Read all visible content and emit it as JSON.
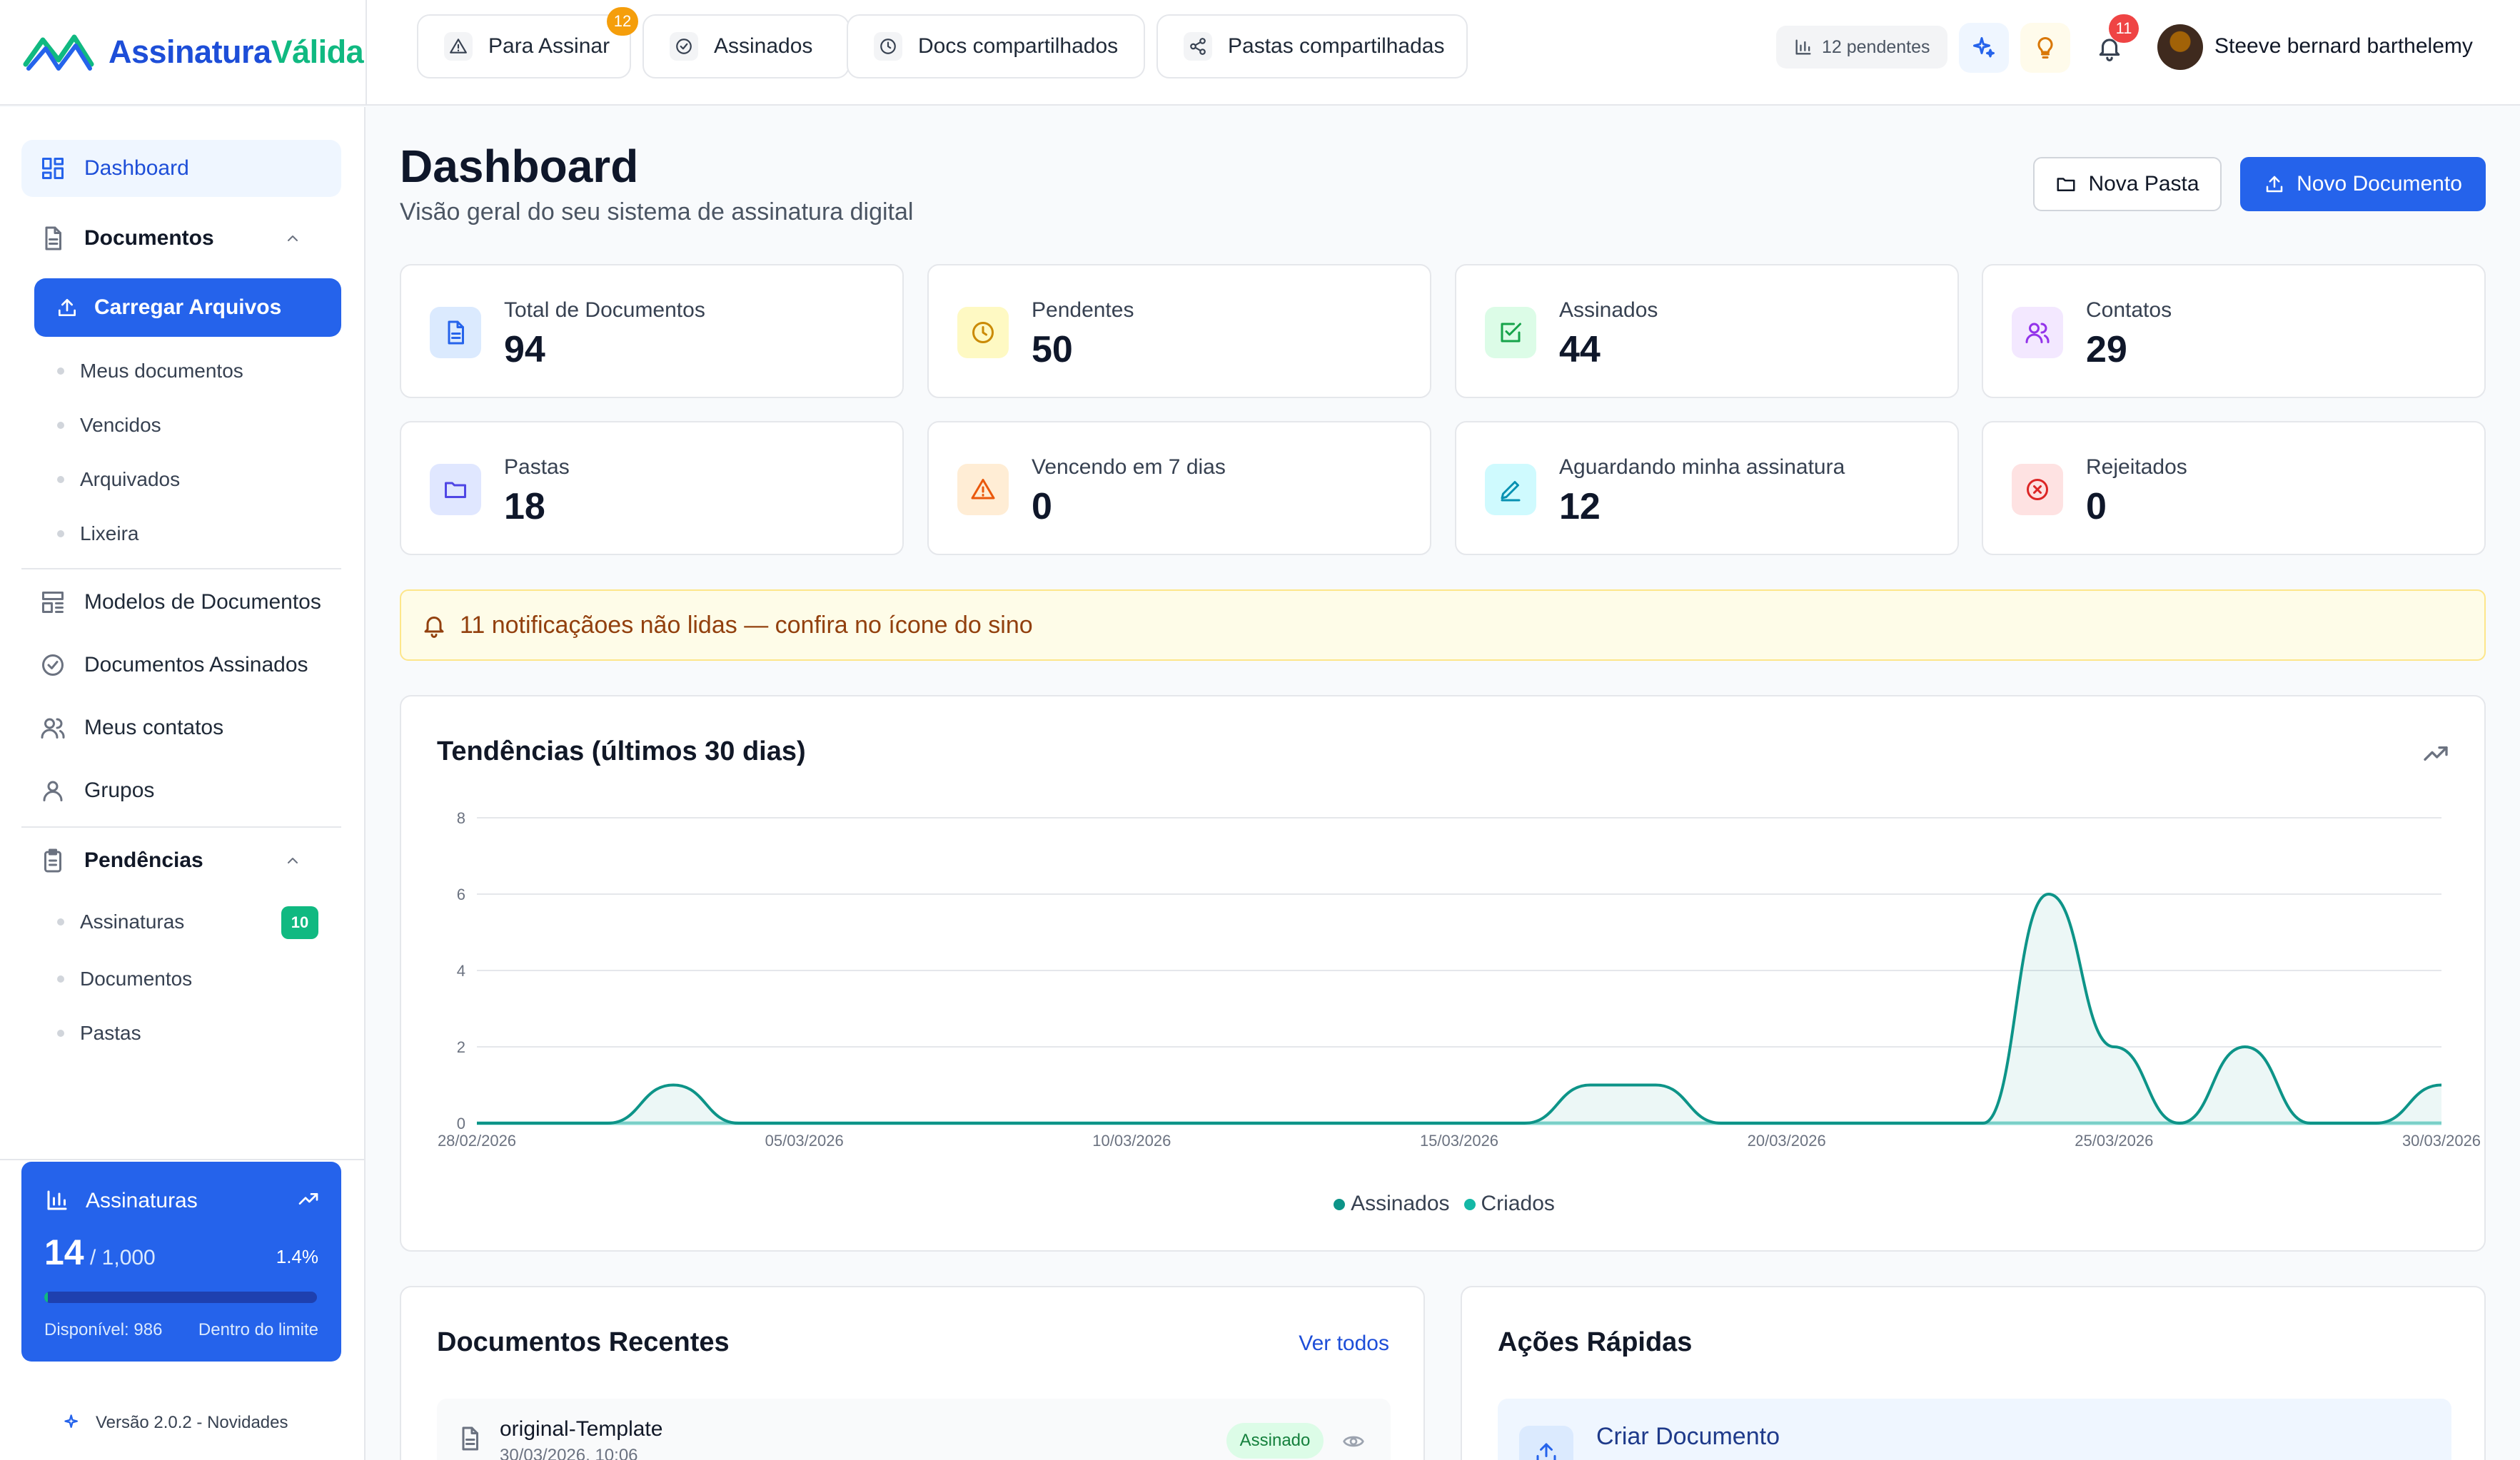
{
  "app": {
    "logo_main": "Assinatura",
    "logo_accent": "Válida"
  },
  "header": {
    "tabs": [
      {
        "label": "Para Assinar",
        "badge": "12",
        "icon": "alert-triangle-icon"
      },
      {
        "label": "Assinados",
        "icon": "check-circle-icon"
      },
      {
        "label": "Docs compartilhados",
        "icon": "clock-icon"
      },
      {
        "label": "Pastas compartilhadas",
        "icon": "share-icon"
      }
    ],
    "pending_label": "12 pendentes",
    "bell_badge": "11",
    "user_name": "Steeve bernard barthelemy"
  },
  "sidebar": {
    "dashboard": "Dashboard",
    "documentos": "Documentos",
    "upload": "Carregar Arquivos",
    "doc_sub": [
      "Meus documentos",
      "Vencidos",
      "Arquivados",
      "Lixeira"
    ],
    "modelos": "Modelos de Documentos",
    "assinados": "Documentos Assinados",
    "contatos": "Meus contatos",
    "grupos": "Grupos",
    "pendencias": "Pendências",
    "pend_sub": [
      "Assinaturas",
      "Documentos",
      "Pastas"
    ],
    "pend_badge": "10",
    "quota": {
      "title": "Assinaturas",
      "used": "14",
      "total": "/ 1,000",
      "percent": "1.4%",
      "fill_fraction": 0.014,
      "available": "Disponível: 986",
      "status": "Dentro do limite"
    },
    "version": "Versão 2.0.2 - Novidades"
  },
  "main": {
    "title": "Dashboard",
    "subtitle": "Visão geral do seu sistema de assinatura digital",
    "btn_nova_pasta": "Nova Pasta",
    "btn_novo_documento": "Novo Documento",
    "stats": [
      {
        "label": "Total de Documentos",
        "value": "94",
        "icon": "document-icon",
        "color": "#2563eb",
        "bg": "#dbeafe"
      },
      {
        "label": "Pendentes",
        "value": "50",
        "icon": "clock-icon",
        "color": "#ca8a04",
        "bg": "#fef9c3"
      },
      {
        "label": "Assinados",
        "value": "44",
        "icon": "check-square-icon",
        "color": "#16a34a",
        "bg": "#dcfce7"
      },
      {
        "label": "Contatos",
        "value": "29",
        "icon": "users-icon",
        "color": "#9333ea",
        "bg": "#f3e8ff"
      },
      {
        "label": "Pastas",
        "value": "18",
        "icon": "folder-icon",
        "color": "#4f46e5",
        "bg": "#e0e7ff"
      },
      {
        "label": "Vencendo em 7 dias",
        "value": "0",
        "icon": "warning-icon",
        "color": "#ea580c",
        "bg": "#ffedd5"
      },
      {
        "label": "Aguardando minha assinatura",
        "value": "12",
        "icon": "pen-icon",
        "color": "#0891b2",
        "bg": "#cffafe"
      },
      {
        "label": "Rejeitados",
        "value": "0",
        "icon": "x-circle-icon",
        "color": "#dc2626",
        "bg": "#fee2e2"
      }
    ],
    "notification": "11 notificaçãoes não lidas — confira no ícone do sino",
    "recent": {
      "title": "Documentos Recentes",
      "link": "Ver todos",
      "items": [
        {
          "name": "original-Template",
          "date": "30/03/2026, 10:06",
          "status": "Assinado"
        }
      ]
    },
    "quick": {
      "title": "Ações Rápidas",
      "items": [
        {
          "label": "Criar Documento",
          "icon": "upload-icon"
        }
      ]
    }
  },
  "chart_data": {
    "type": "area",
    "title": "Tendências (últimos 30 dias)",
    "xlabel": "",
    "ylabel": "",
    "ylim": [
      0,
      8
    ],
    "y_ticks": [
      0,
      2,
      4,
      6,
      8
    ],
    "x_ticks": [
      "28/02/2026",
      "05/03/2026",
      "10/03/2026",
      "15/03/2026",
      "20/03/2026",
      "25/03/2026",
      "30/03/2026"
    ],
    "x": [
      "28/02/2026",
      "01/03/2026",
      "02/03/2026",
      "03/03/2026",
      "04/03/2026",
      "05/03/2026",
      "06/03/2026",
      "07/03/2026",
      "08/03/2026",
      "09/03/2026",
      "10/03/2026",
      "11/03/2026",
      "12/03/2026",
      "13/03/2026",
      "14/03/2026",
      "15/03/2026",
      "16/03/2026",
      "17/03/2026",
      "18/03/2026",
      "19/03/2026",
      "20/03/2026",
      "21/03/2026",
      "22/03/2026",
      "23/03/2026",
      "24/03/2026",
      "25/03/2026",
      "26/03/2026",
      "27/03/2026",
      "28/03/2026",
      "29/03/2026",
      "30/03/2026"
    ],
    "series": [
      {
        "name": "Assinados",
        "color": "#0d9488",
        "values": [
          0,
          0,
          0,
          1,
          0,
          0,
          0,
          0,
          0,
          0,
          0,
          0,
          0,
          0,
          0,
          0,
          0,
          1,
          1,
          0,
          0,
          0,
          0,
          0,
          6,
          2,
          0,
          2,
          0,
          0,
          1
        ]
      },
      {
        "name": "Criados",
        "color": "#14b8a6",
        "values": [
          0,
          0,
          0,
          0,
          0,
          0,
          0,
          0,
          0,
          0,
          0,
          0,
          0,
          0,
          0,
          0,
          0,
          0,
          0,
          0,
          0,
          0,
          0,
          0,
          0,
          0,
          0,
          0,
          0,
          0,
          0
        ]
      }
    ],
    "grid": true,
    "legend": "bottom-center"
  }
}
